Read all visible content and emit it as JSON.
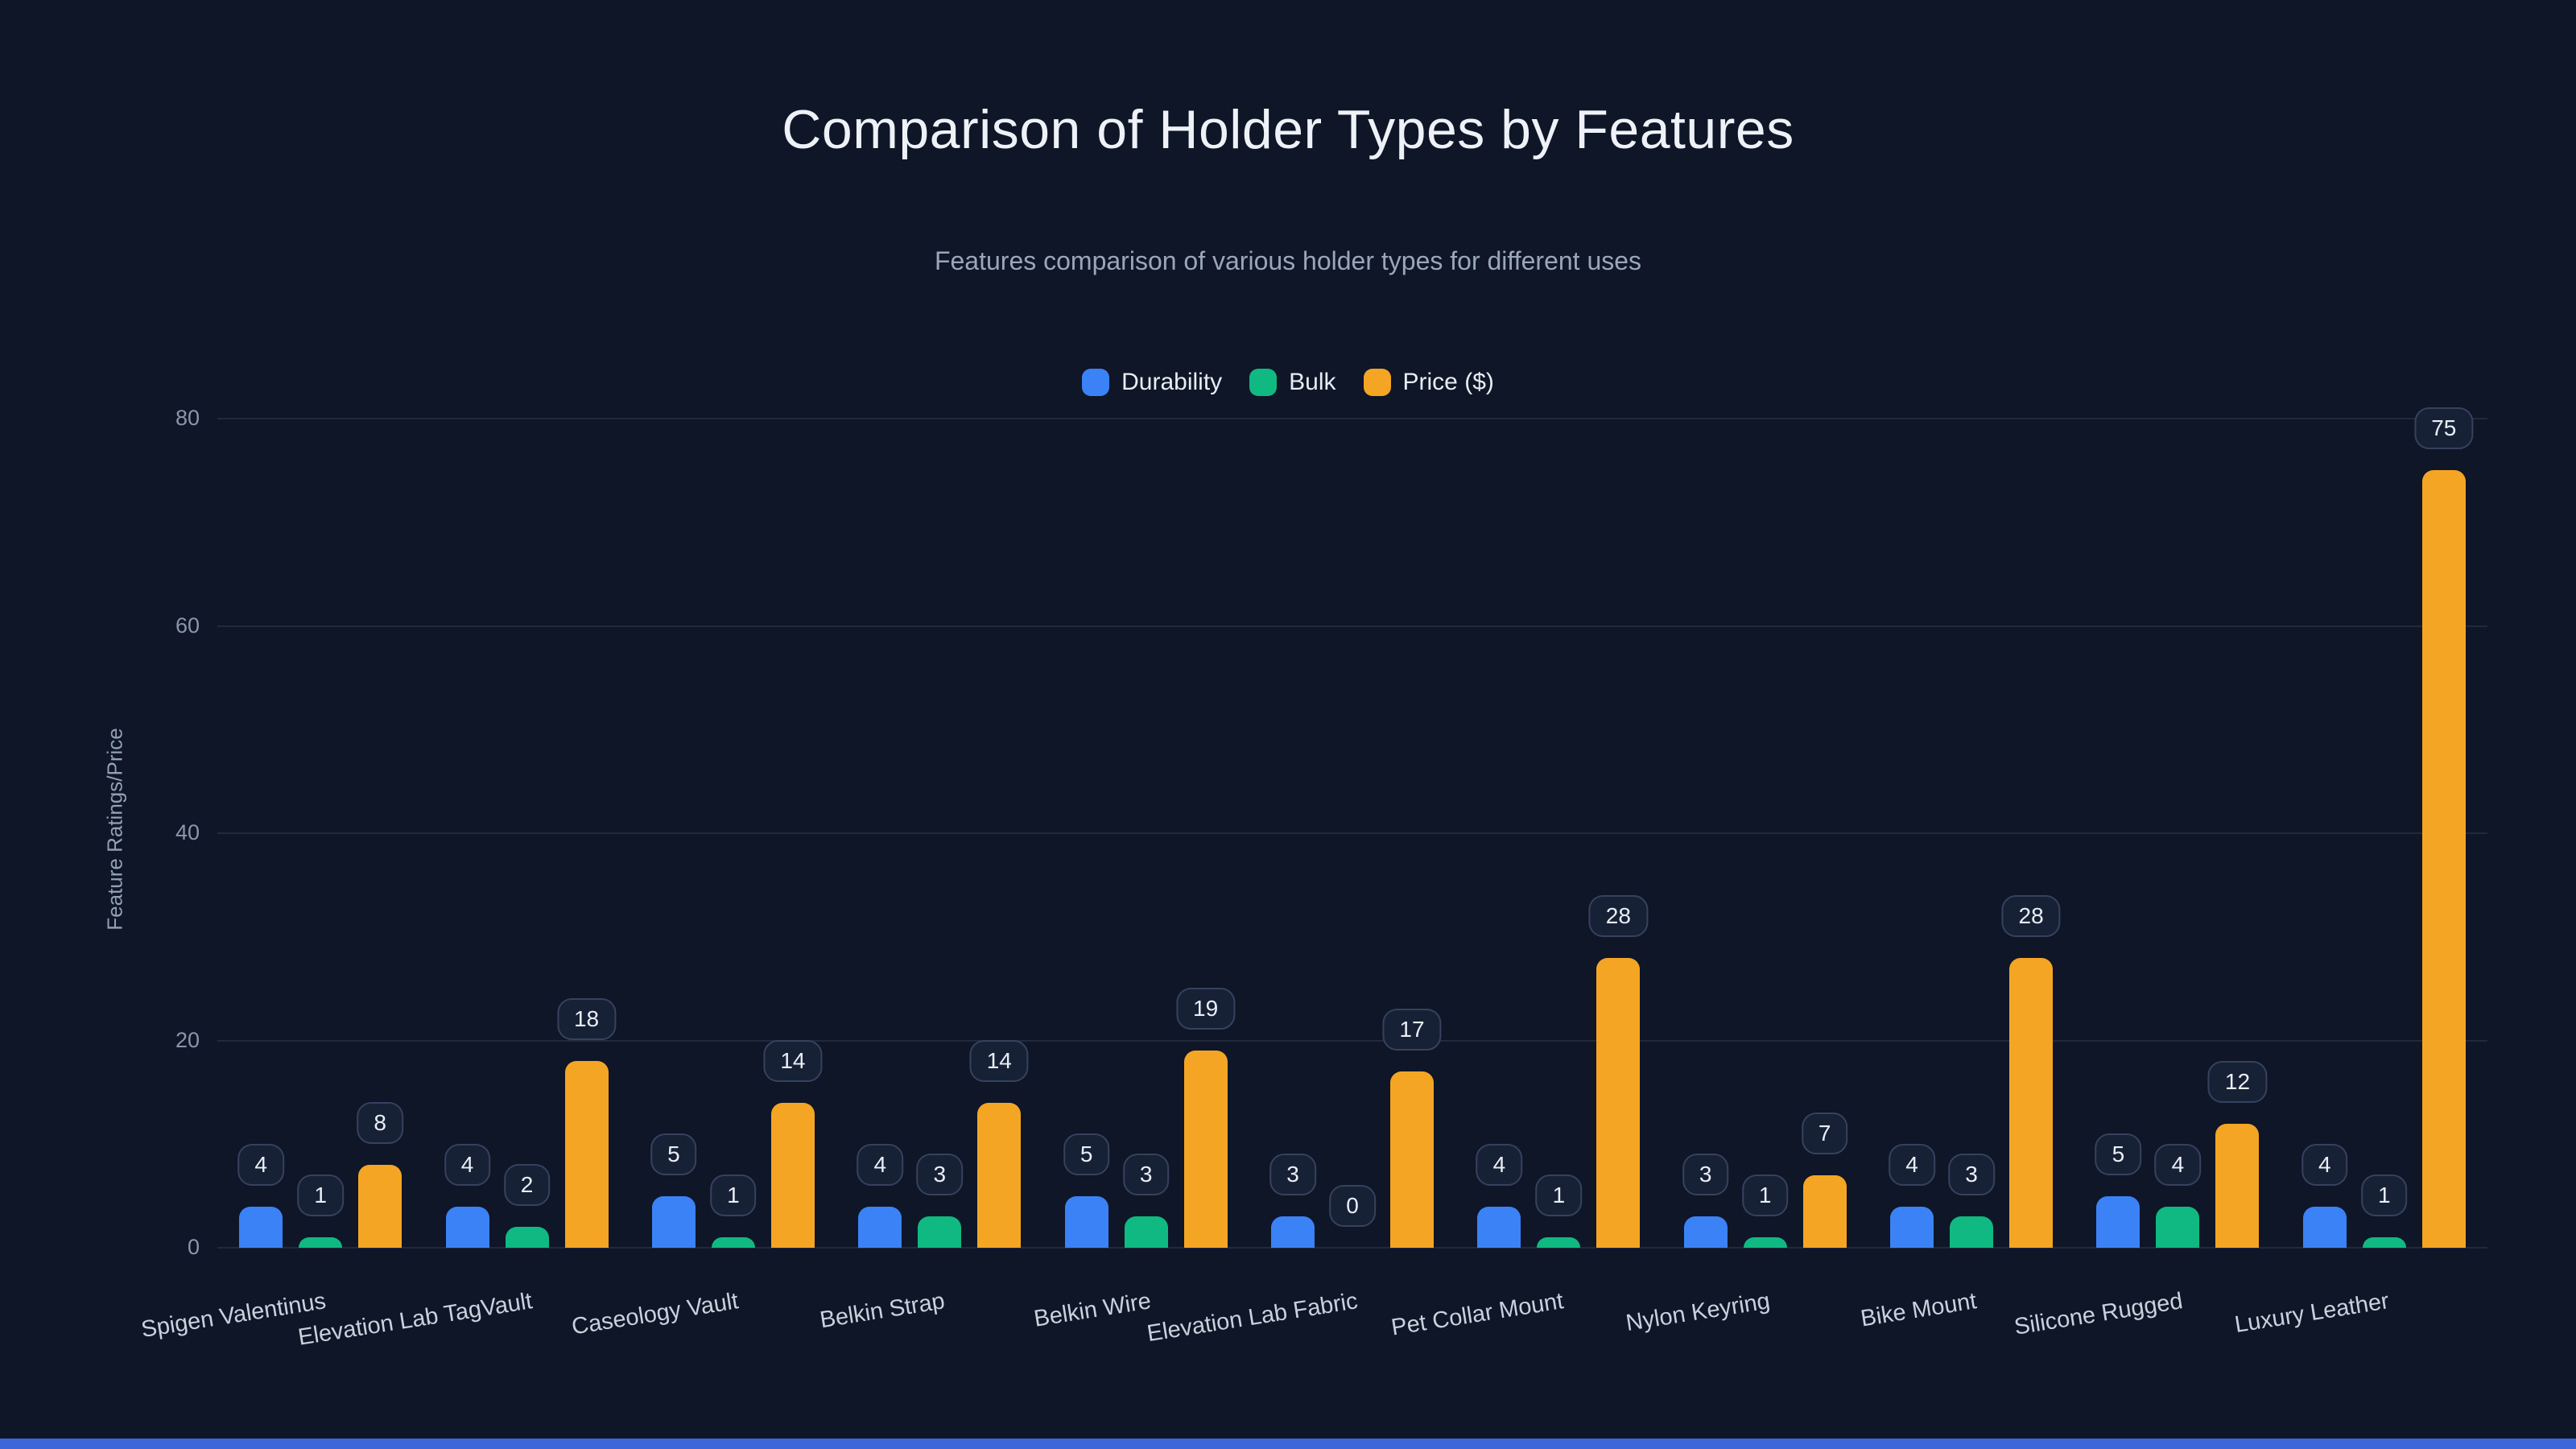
{
  "colors": {
    "background": "#0e1627",
    "durability": "#3b82f6",
    "bulk": "#10b981",
    "price": "#f5a524",
    "bottom_accent": "#3c66d9"
  },
  "chart_data": {
    "type": "bar",
    "title": "Comparison of Holder Types by Features",
    "subtitle": "Features comparison of various holder types for different uses",
    "ylabel": "Feature Ratings/Price",
    "xlabel": "",
    "ylim": [
      0,
      80
    ],
    "yticks": [
      0,
      20,
      40,
      60,
      80
    ],
    "grid": true,
    "legend_position": "top",
    "value_labels": true,
    "categories": [
      "Spigen Valentinus",
      "Elevation Lab TagVault",
      "Caseology Vault",
      "Belkin Strap",
      "Belkin Wire",
      "Elevation Lab Fabric",
      "Pet Collar Mount",
      "Nylon Keyring",
      "Bike Mount",
      "Silicone Rugged",
      "Luxury Leather"
    ],
    "series": [
      {
        "name": "Durability",
        "color": "#3b82f6",
        "values": [
          4,
          4,
          5,
          4,
          5,
          3,
          4,
          3,
          4,
          5,
          4
        ]
      },
      {
        "name": "Bulk",
        "color": "#10b981",
        "values": [
          1,
          2,
          1,
          3,
          3,
          0,
          1,
          1,
          3,
          4,
          1
        ]
      },
      {
        "name": "Price ($)",
        "color": "#f5a524",
        "values": [
          8,
          18,
          14,
          14,
          19,
          17,
          28,
          7,
          28,
          12,
          75
        ]
      }
    ]
  }
}
